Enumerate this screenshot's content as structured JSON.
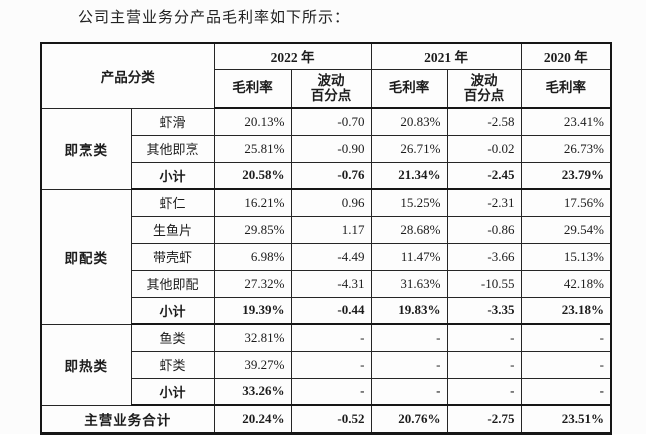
{
  "page": {
    "title": "公司主营业务分产品毛利率如下所示："
  },
  "table": {
    "header": {
      "product_category": "产品分类",
      "year_2022": "2022 年",
      "year_2021": "2021 年",
      "year_2020": "2020 年",
      "gross_margin_2022": "毛利率",
      "fluctuation_2022_line1": "波动",
      "fluctuation_2022_line2": "百分点",
      "gross_margin_2021": "毛利率",
      "fluctuation_2021_line1": "波动",
      "fluctuation_2021_line2": "百分点",
      "gross_margin_2020": "毛利率"
    },
    "groups": [
      {
        "category": "即烹类",
        "rows": [
          {
            "name": "虾滑",
            "values": [
              "20.13%",
              "-0.70",
              "20.83%",
              "-2.58",
              "23.41%"
            ],
            "bold": false
          },
          {
            "name": "其他即烹",
            "values": [
              "25.81%",
              "-0.90",
              "26.71%",
              "-0.02",
              "26.73%"
            ],
            "bold": false
          },
          {
            "name": "小计",
            "values": [
              "20.58%",
              "-0.76",
              "21.34%",
              "-2.45",
              "23.79%"
            ],
            "bold": true
          }
        ]
      },
      {
        "category": "即配类",
        "rows": [
          {
            "name": "虾仁",
            "values": [
              "16.21%",
              "0.96",
              "15.25%",
              "-2.31",
              "17.56%"
            ],
            "bold": false
          },
          {
            "name": "生鱼片",
            "values": [
              "29.85%",
              "1.17",
              "28.68%",
              "-0.86",
              "29.54%"
            ],
            "bold": false
          },
          {
            "name": "带壳虾",
            "values": [
              "6.98%",
              "-4.49",
              "11.47%",
              "-3.66",
              "15.13%"
            ],
            "bold": false
          },
          {
            "name": "其他即配",
            "values": [
              "27.32%",
              "-4.31",
              "31.63%",
              "-10.55",
              "42.18%"
            ],
            "bold": false
          },
          {
            "name": "小计",
            "values": [
              "19.39%",
              "-0.44",
              "19.83%",
              "-3.35",
              "23.18%"
            ],
            "bold": true
          }
        ]
      },
      {
        "category": "即热类",
        "rows": [
          {
            "name": "鱼类",
            "values": [
              "32.81%",
              "-",
              "-",
              "-",
              "-"
            ],
            "bold": false
          },
          {
            "name": "虾类",
            "values": [
              "39.27%",
              "-",
              "-",
              "-",
              "-"
            ],
            "bold": false
          },
          {
            "name": "小计",
            "values": [
              "33.26%",
              "-",
              "-",
              "-",
              "-"
            ],
            "bold": true
          }
        ]
      }
    ],
    "total_row": {
      "label": "主营业务合计",
      "values": [
        "20.24%",
        "-0.52",
        "20.76%",
        "-2.75",
        "23.51%"
      ]
    }
  }
}
